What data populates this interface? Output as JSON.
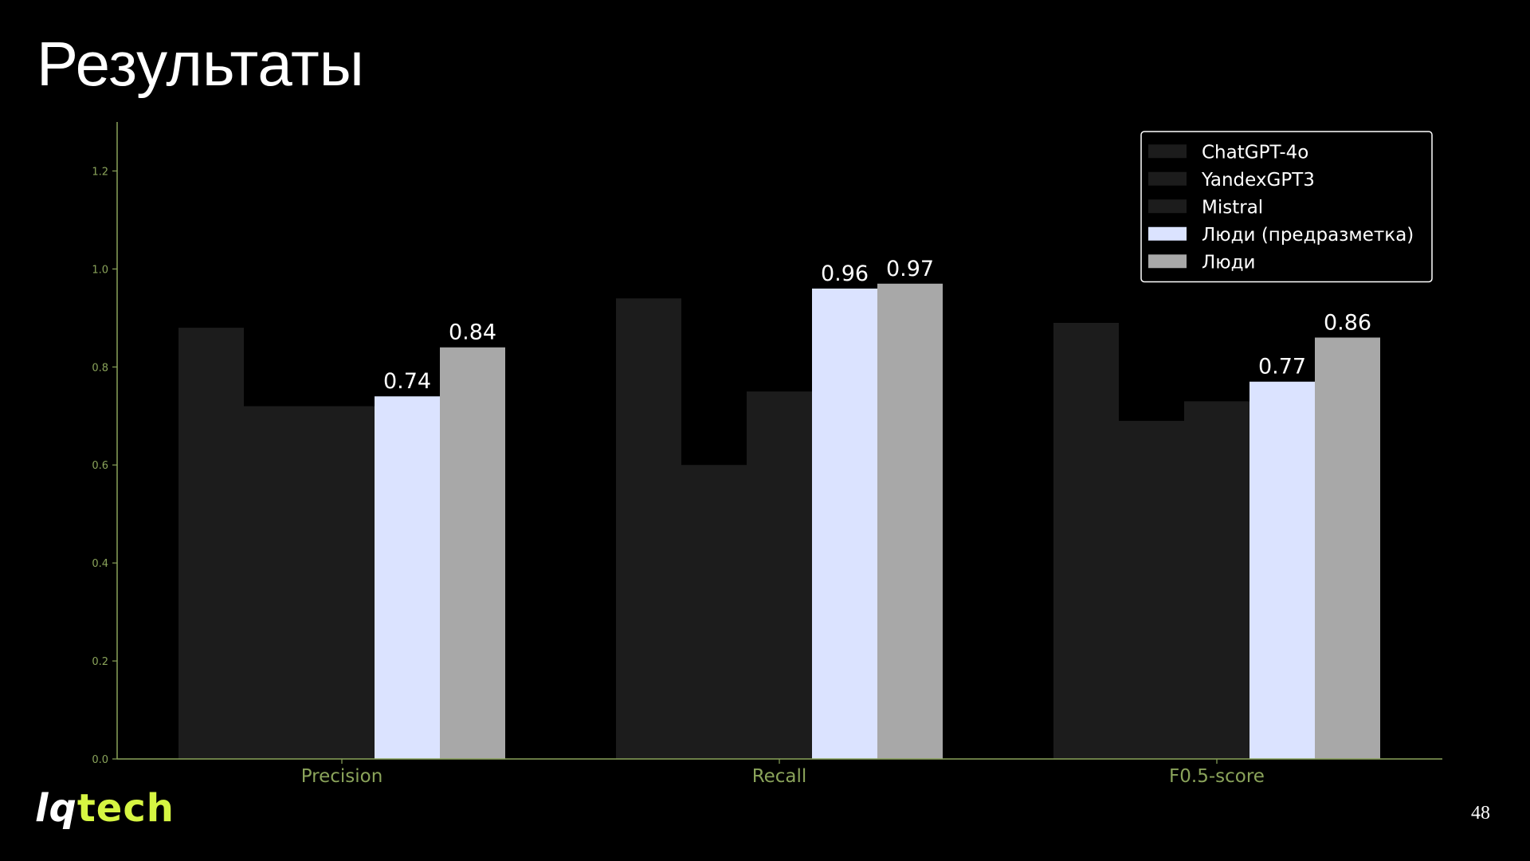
{
  "slide": {
    "title": "Результаты",
    "page_number": "48",
    "logo": {
      "part1": "lq",
      "part2": "tech"
    }
  },
  "colors": {
    "background": "#000000",
    "axis": "#8aa35a",
    "tick_label": "#8aa35a",
    "value_label": "#ffffff",
    "legend_text": "#ffffff",
    "legend_border": "#ffffff"
  },
  "chart_data": {
    "type": "bar",
    "title": "",
    "xlabel": "",
    "ylabel": "",
    "categories": [
      "Precision",
      "Recall",
      "F0.5-score"
    ],
    "ylim": [
      0,
      1.3
    ],
    "yticks": [
      0.0,
      0.2,
      0.4,
      0.6,
      0.8,
      1.0,
      1.2
    ],
    "ytick_labels": [
      "0.0",
      "0.2",
      "0.4",
      "0.6",
      "0.8",
      "1.0",
      "1.2"
    ],
    "grid": false,
    "legend_position": "top-right",
    "series": [
      {
        "name": "ChatGPT-4o",
        "color": "#1c1c1c",
        "values": [
          0.88,
          0.94,
          0.89
        ],
        "labels": [
          "",
          "",
          ""
        ]
      },
      {
        "name": "YandexGPT3",
        "color": "#1c1c1c",
        "values": [
          0.72,
          0.6,
          0.69
        ],
        "labels": [
          "",
          "",
          ""
        ]
      },
      {
        "name": "Mistral",
        "color": "#1c1c1c",
        "values": [
          0.72,
          0.75,
          0.73
        ],
        "labels": [
          "",
          "",
          ""
        ]
      },
      {
        "name": "Люди (предразметка)",
        "color": "#dbe3ff",
        "values": [
          0.74,
          0.96,
          0.77
        ],
        "labels": [
          "0.74",
          "0.96",
          "0.77"
        ]
      },
      {
        "name": "Люди",
        "color": "#a8a8a8",
        "values": [
          0.84,
          0.97,
          0.86
        ],
        "labels": [
          "0.84",
          "0.97",
          "0.86"
        ]
      }
    ]
  }
}
